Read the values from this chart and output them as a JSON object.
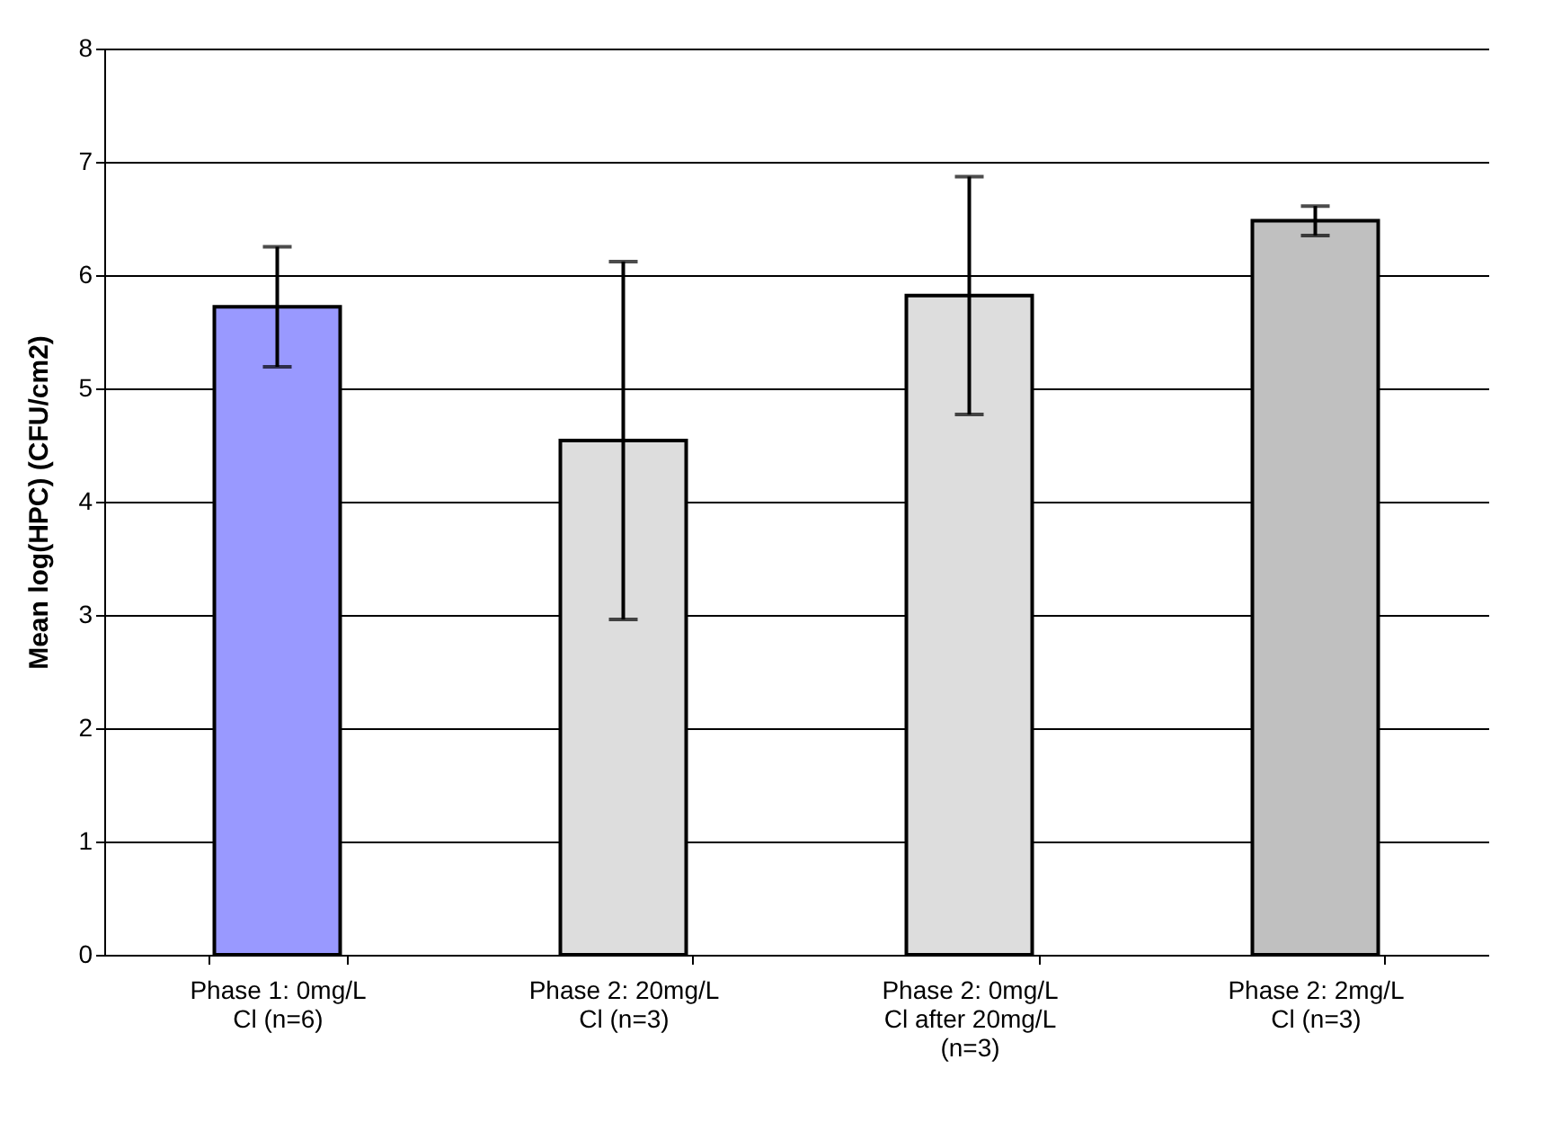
{
  "chart_data": {
    "type": "bar",
    "ylabel": "Mean log(HPC) (CFU/cm2)",
    "categories": [
      "Phase 1: 0mg/L Cl (n=6)",
      "Phase 2: 20mg/L Cl (n=3)",
      "Phase 2: 0mg/L Cl after 20mg/L (n=3)",
      "Phase 2: 2mg/L Cl (n=3)"
    ],
    "values": [
      5.72,
      4.54,
      5.82,
      6.48
    ],
    "errors": [
      0.53,
      1.58,
      1.05,
      0.13
    ],
    "colors": [
      "#9999ff",
      "#dddddd",
      "#dddddd",
      "#c0c0c0"
    ],
    "ylim": [
      0,
      8
    ],
    "yticks": [
      0,
      1,
      2,
      3,
      4,
      5,
      6,
      7,
      8
    ],
    "grid": "y"
  }
}
